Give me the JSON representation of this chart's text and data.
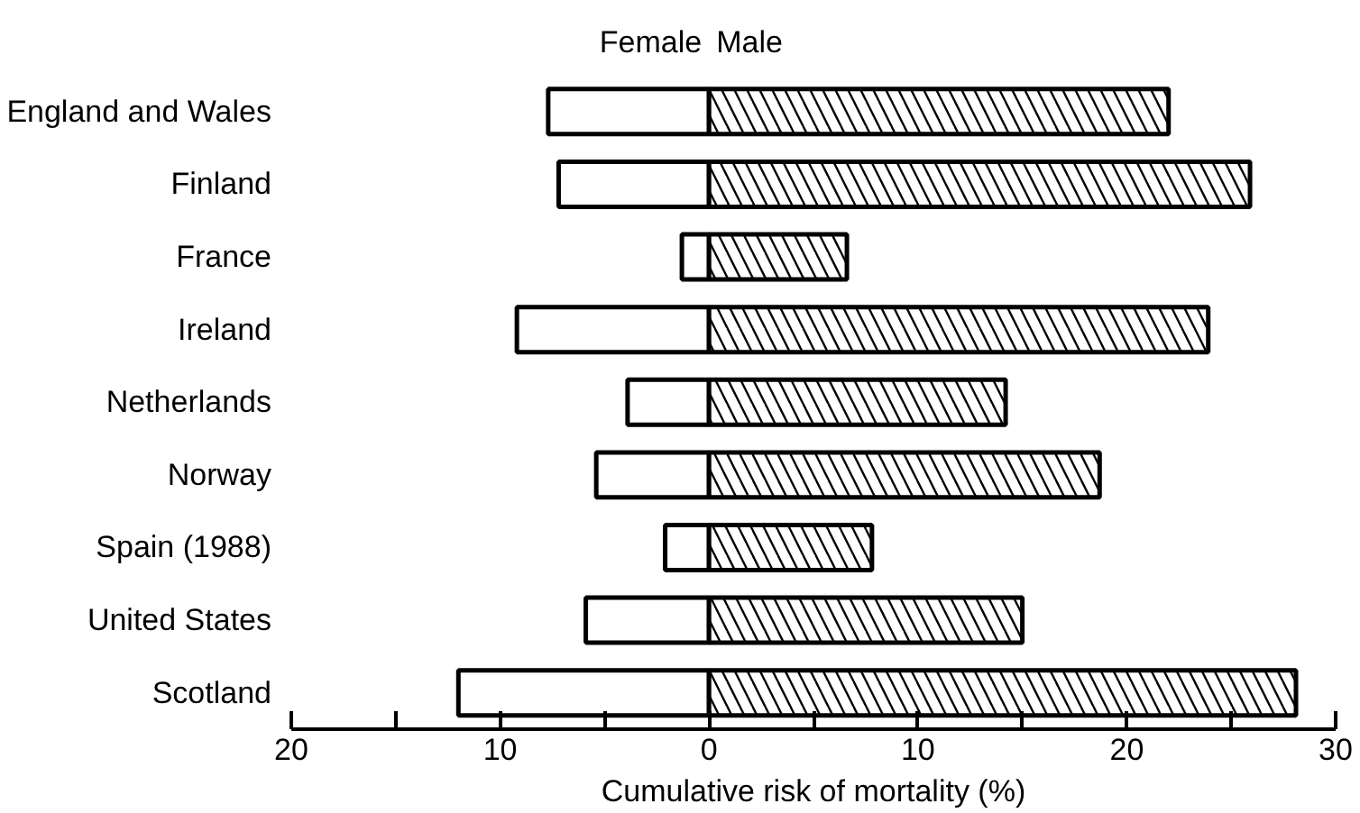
{
  "chart_data": {
    "type": "bar",
    "orientation": "horizontal",
    "stacked": true,
    "xlabel": "Cumulative risk of mortality (%)",
    "categories": [
      "England and Wales",
      "Finland",
      "France",
      "Ireland",
      "Netherlands",
      "Norway",
      "Spain (1988)",
      "United States",
      "Scotland"
    ],
    "series": [
      {
        "name": "Female",
        "color": "#ffffff",
        "values": [
          -7.7,
          -7.2,
          -1.3,
          -9.2,
          -3.9,
          -5.4,
          -2.1,
          -5.9,
          -12.0
        ]
      },
      {
        "name": "Male",
        "color": "#000000",
        "values": [
          22.0,
          25.9,
          6.6,
          23.9,
          14.2,
          18.7,
          7.8,
          15.0,
          28.1
        ]
      }
    ],
    "xlim": [
      -20,
      30
    ],
    "xticks": [
      {
        "value": -20,
        "label": "20"
      },
      {
        "value": -15,
        "label": null
      },
      {
        "value": -10,
        "label": "10"
      },
      {
        "value": -5,
        "label": null
      },
      0,
      {
        "value": 5,
        "label": null
      },
      10,
      {
        "value": 15,
        "label": null
      },
      20,
      {
        "value": 25,
        "label": null
      },
      30
    ],
    "grid": false,
    "legend": "top"
  }
}
